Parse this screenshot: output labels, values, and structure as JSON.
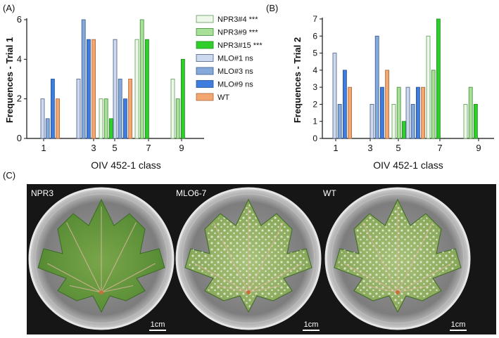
{
  "panel_a": {
    "label": "(A)"
  },
  "panel_b": {
    "label": "(B)"
  },
  "panel_c": {
    "label": "(C)"
  },
  "legend": {
    "items": [
      {
        "label": "NPR3#4 ***",
        "color": "#eef8ea",
        "stroke": "#5a9a52"
      },
      {
        "label": "NPR3#9 ***",
        "color": "#a8e098",
        "stroke": "#3f8a3a"
      },
      {
        "label": "NPR3#15 ***",
        "color": "#2fcf2b",
        "stroke": "#1e8a1e"
      },
      {
        "label": "MLO#1 ns",
        "color": "#cdd9ef",
        "stroke": "#4a5d80"
      },
      {
        "label": "MLO#3 ns",
        "color": "#86a9dc",
        "stroke": "#3b5a8a"
      },
      {
        "label": "MLO#9 ns",
        "color": "#3f7ce0",
        "stroke": "#24508f"
      },
      {
        "label": "WT",
        "color": "#f2a771",
        "stroke": "#a9663a"
      }
    ]
  },
  "chart_data": [
    {
      "type": "bar",
      "ylabel": "Frequences - Trial 1",
      "xlabel": "OIV 452-1 class",
      "categories": [
        "1",
        "3",
        "5",
        "7",
        "9"
      ],
      "ylim": [
        0,
        6
      ],
      "yticks": [
        "0",
        "2",
        "4",
        "6"
      ],
      "series": [
        {
          "name": "NPR3#4 ***",
          "values": [
            0,
            0,
            2,
            5,
            3
          ]
        },
        {
          "name": "NPR3#9 ***",
          "values": [
            0,
            0,
            2,
            6,
            2
          ]
        },
        {
          "name": "NPR3#15 ***",
          "values": [
            0,
            0,
            1,
            5,
            4
          ]
        },
        {
          "name": "MLO#1 ns",
          "values": [
            2,
            3,
            5,
            0,
            0
          ]
        },
        {
          "name": "MLO#3 ns",
          "values": [
            1,
            6,
            3,
            0,
            0
          ]
        },
        {
          "name": "MLO#9 ns",
          "values": [
            3,
            5,
            2,
            0,
            0
          ]
        },
        {
          "name": "WT",
          "values": [
            2,
            5,
            3,
            0,
            0
          ]
        }
      ]
    },
    {
      "type": "bar",
      "ylabel": "Frequences - Trial 2",
      "xlabel": "OIV 452-1 class",
      "categories": [
        "1",
        "3",
        "5",
        "7",
        "9"
      ],
      "ylim": [
        0,
        7
      ],
      "yticks": [
        "0",
        "1",
        "2",
        "3",
        "4",
        "5",
        "6",
        "7"
      ],
      "series": [
        {
          "name": "NPR3#4 ***",
          "values": [
            0,
            0,
            2,
            6,
            2
          ]
        },
        {
          "name": "NPR3#9 ***",
          "values": [
            0,
            0,
            3,
            4,
            3
          ]
        },
        {
          "name": "NPR3#15 ***",
          "values": [
            0,
            0,
            1,
            7,
            2
          ]
        },
        {
          "name": "MLO#1 ns",
          "values": [
            5,
            2,
            3,
            0,
            0
          ]
        },
        {
          "name": "MLO#3 ns",
          "values": [
            2,
            6,
            2,
            0,
            0
          ]
        },
        {
          "name": "MLO#9 ns",
          "values": [
            4,
            3,
            3,
            0,
            0
          ]
        },
        {
          "name": "WT",
          "values": [
            3,
            4,
            3,
            0,
            0
          ]
        }
      ]
    }
  ],
  "photos": [
    {
      "label": "NPR3",
      "scale": "1cm"
    },
    {
      "label": "MLO6-7",
      "scale": "1cm"
    },
    {
      "label": "WT",
      "scale": "1cm"
    }
  ]
}
